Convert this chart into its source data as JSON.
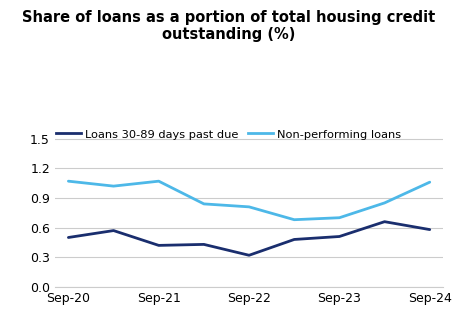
{
  "title": "Share of loans as a portion of total housing credit\noutstanding (%)",
  "title_fontsize": 10.5,
  "x_labels": [
    "Sep-20",
    "Sep-21",
    "Sep-22",
    "Sep-23",
    "Sep-24"
  ],
  "x_positions": [
    0,
    2,
    4,
    6,
    8
  ],
  "non_performing": {
    "label": "Non-performing loans",
    "color": "#4db8e8",
    "x": [
      0,
      1,
      2,
      3,
      4,
      5,
      6,
      7,
      8
    ],
    "y": [
      1.07,
      1.02,
      1.07,
      0.84,
      0.81,
      0.68,
      0.7,
      0.85,
      1.06
    ]
  },
  "days_past_due": {
    "label": "Loans 30-89 days past due",
    "color": "#1a2e6e",
    "x": [
      0,
      1,
      2,
      3,
      4,
      5,
      6,
      7,
      8
    ],
    "y": [
      0.5,
      0.57,
      0.42,
      0.43,
      0.32,
      0.48,
      0.51,
      0.66,
      0.58
    ]
  },
  "ylim": [
    0.0,
    1.65
  ],
  "yticks": [
    0.0,
    0.3,
    0.6,
    0.9,
    1.2,
    1.5
  ],
  "linewidth": 2.0,
  "background_color": "#ffffff",
  "grid_color": "#cccccc"
}
